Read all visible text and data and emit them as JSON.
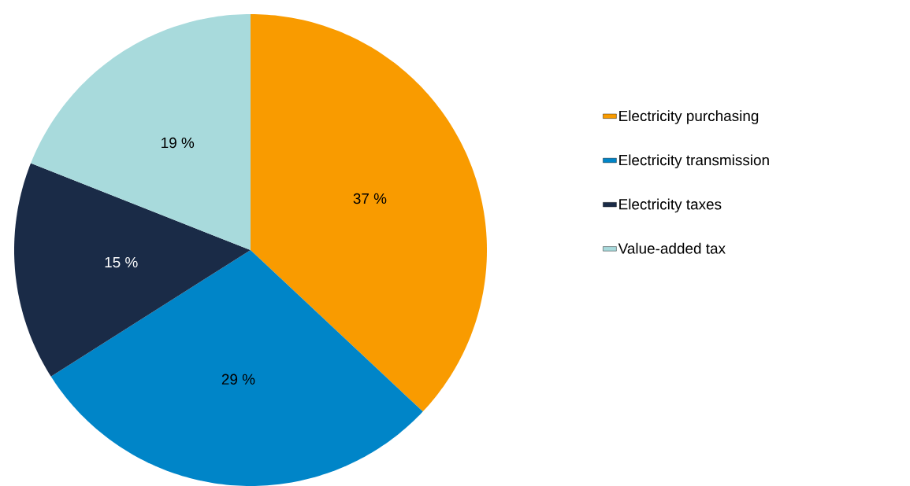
{
  "chart_data": {
    "type": "pie",
    "categories": [
      "Electricity purchasing",
      "Electricity transmission",
      "Electricity taxes",
      "Value-added tax"
    ],
    "values": [
      37,
      29,
      15,
      19
    ],
    "colors": [
      "#f99b00",
      "#0085c8",
      "#1a2b47",
      "#a8dadc"
    ],
    "value_labels": [
      "37 %",
      "29 %",
      "15 %",
      "19 %"
    ],
    "legend": "right"
  }
}
